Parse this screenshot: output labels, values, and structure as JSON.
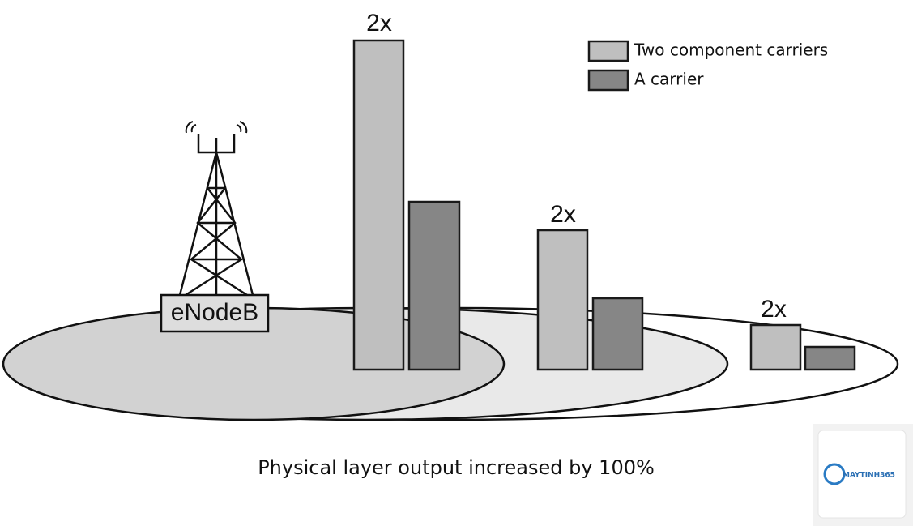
{
  "groups": [
    {
      "label": "2x"
    },
    {
      "label": "2x"
    },
    {
      "label": "2x"
    }
  ],
  "legend": [
    {
      "label": "Two component carriers"
    },
    {
      "label": "A carrier"
    }
  ],
  "station": {
    "label": "eNodeB"
  },
  "caption": "Physical layer output increased by 100%",
  "watermark": {
    "brand": "MAYTINH365"
  }
}
